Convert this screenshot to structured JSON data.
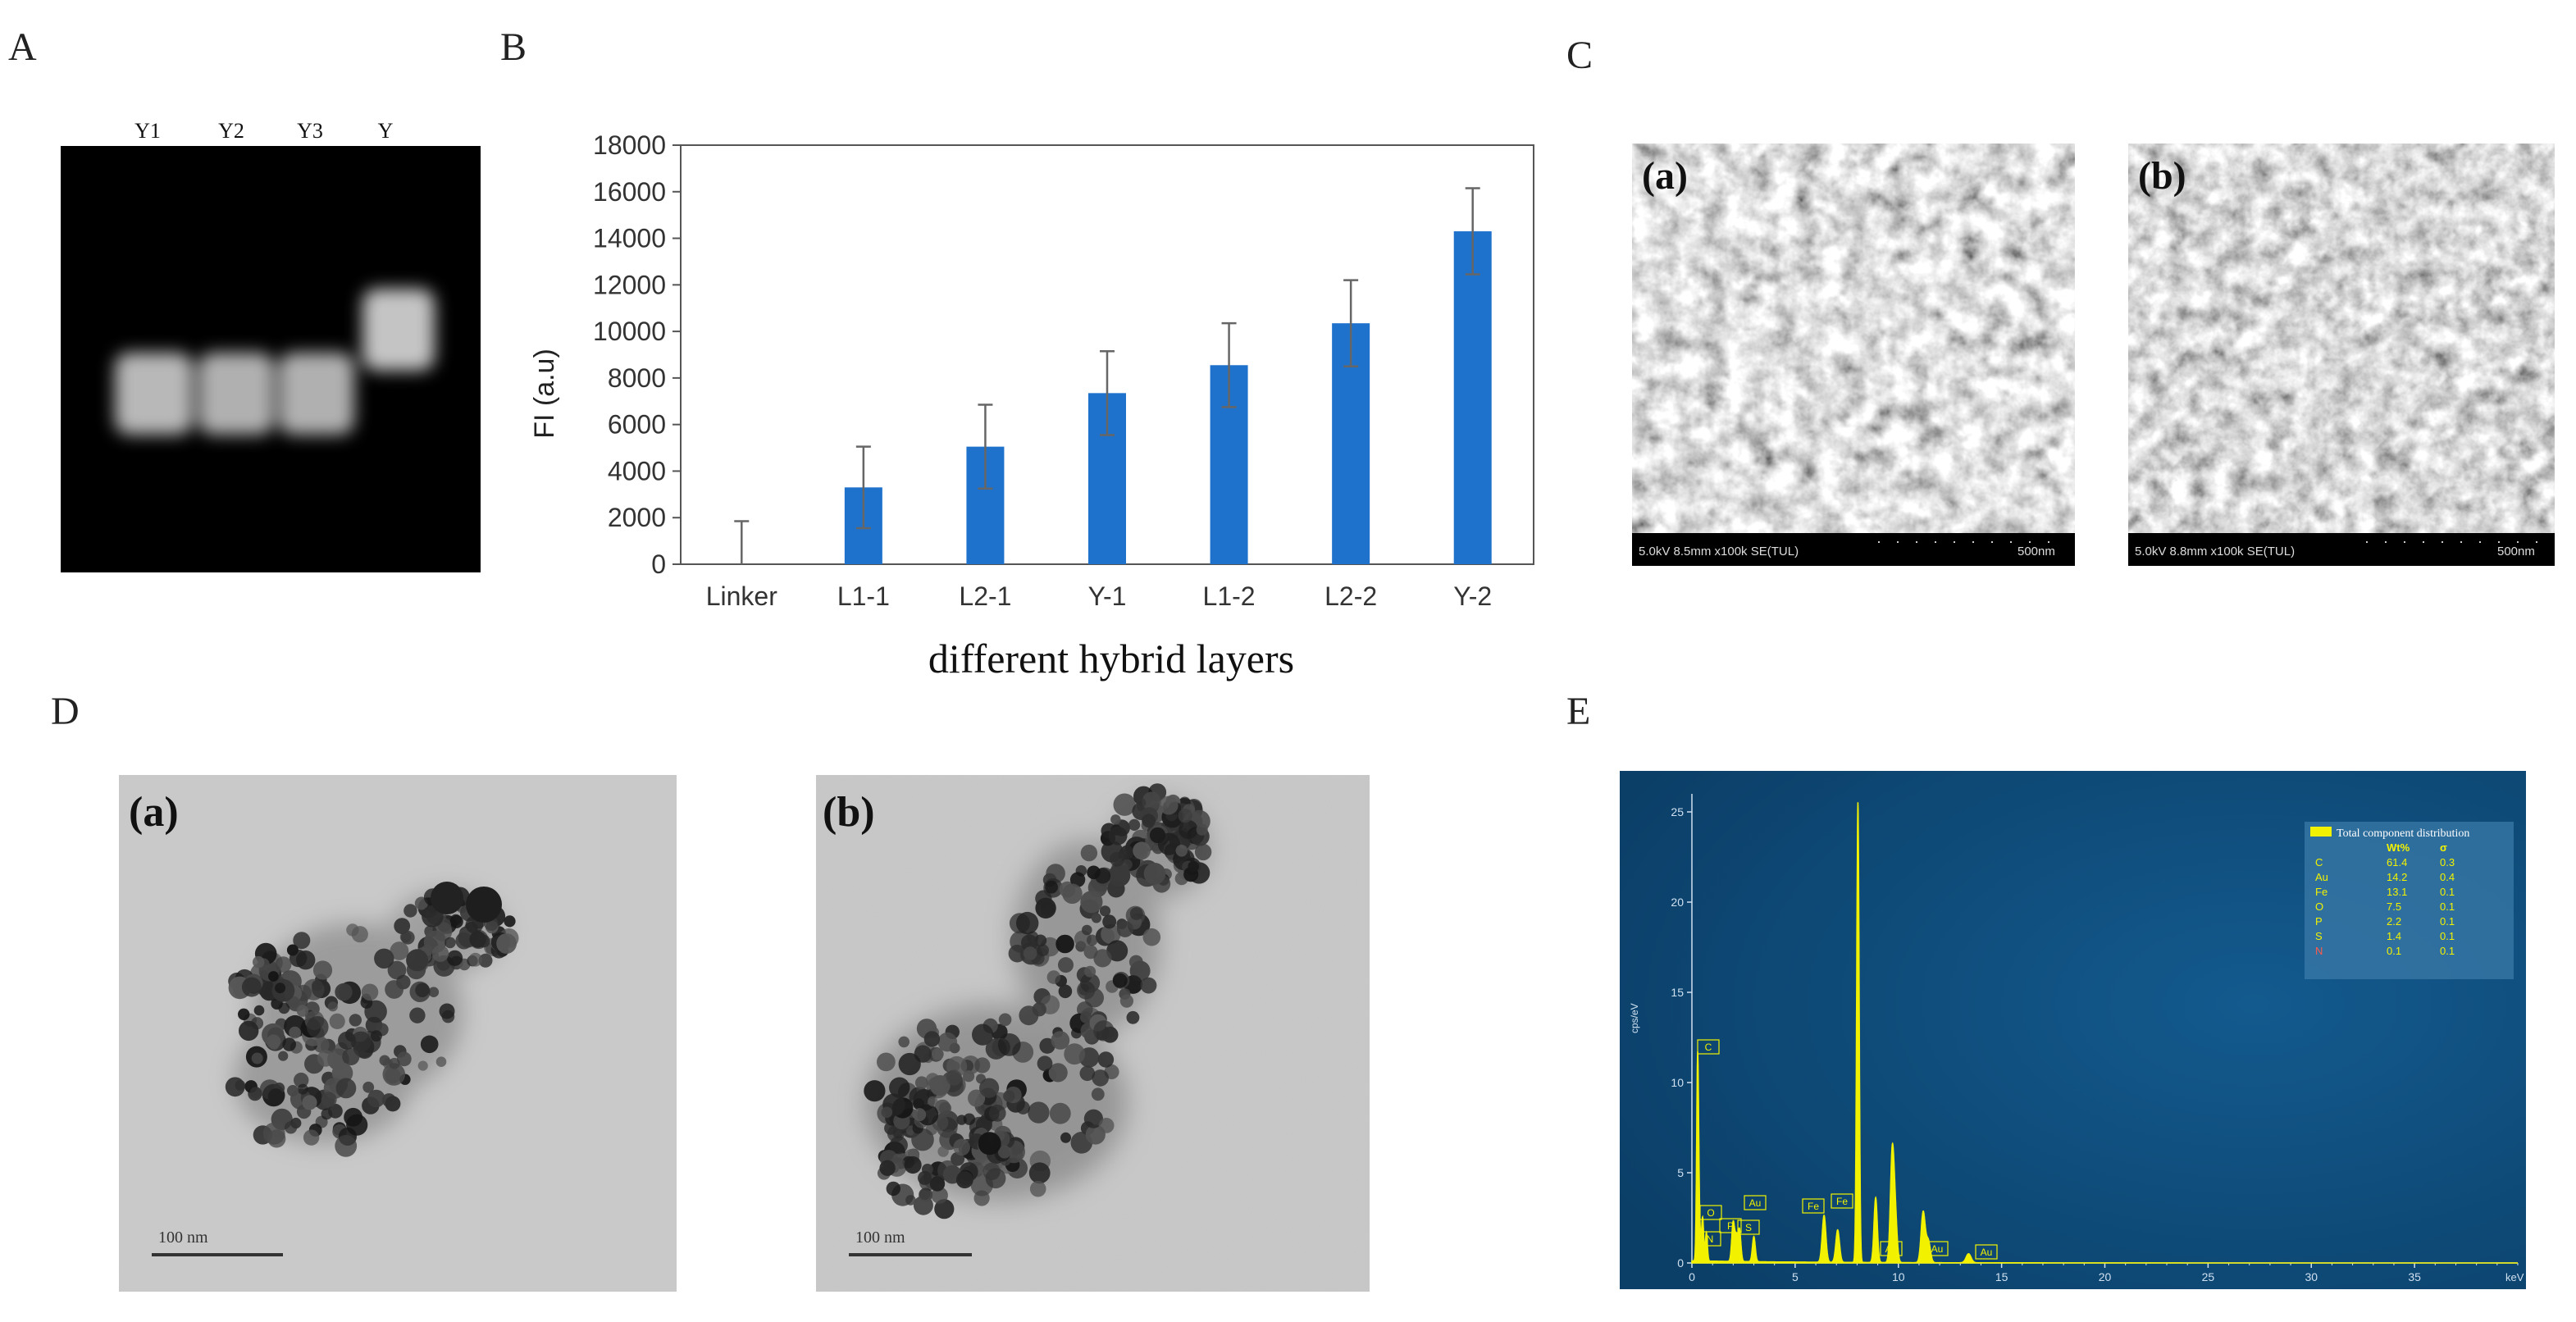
{
  "panels": {
    "a": "A",
    "b": "B",
    "c": "C",
    "d": "D",
    "e": "E"
  },
  "gel": {
    "lanes": [
      "Y1",
      "Y2",
      "Y3",
      "Y"
    ]
  },
  "chart_data": {
    "type": "bar",
    "categories": [
      "Linker",
      "L1-1",
      "L2-1",
      "Y-1",
      "L1-2",
      "L2-2",
      "Y-2"
    ],
    "values": [
      0,
      3300,
      5050,
      7350,
      8550,
      10350,
      14300
    ],
    "errors": [
      1850,
      1750,
      1800,
      1800,
      1800,
      1850,
      1850
    ],
    "ylabel": "FI  (a.u)",
    "xlabel": "different hybrid layers",
    "ylim": [
      0,
      18000
    ],
    "yticks": [
      0,
      2000,
      4000,
      6000,
      8000,
      10000,
      12000,
      14000,
      16000,
      18000
    ],
    "bar_color": "#1f72cc",
    "grid": false
  },
  "sem": {
    "a": {
      "label": "(a)",
      "info": "5.0kV 8.5mm x100k SE(TUL)",
      "scale": "500nm"
    },
    "b": {
      "label": "(b)",
      "info": "5.0kV 8.8mm x100k SE(TUL)",
      "scale": "500nm"
    }
  },
  "tem": {
    "a": {
      "label": "(a)",
      "scale": "100 nm"
    },
    "b": {
      "label": "(b)",
      "scale": "100 nm"
    }
  },
  "eds": {
    "ylabel": "cps/eV",
    "xunit": "keV",
    "yticks": [
      0,
      5,
      10,
      15,
      20,
      25
    ],
    "xticks": [
      0,
      5,
      10,
      15,
      20,
      25,
      30,
      35
    ],
    "legend_title": "Total component distribution",
    "legend_headers": [
      "Wt%",
      "σ"
    ],
    "legend_rows": [
      {
        "el": "C",
        "wt": "61.4",
        "s": "0.3"
      },
      {
        "el": "Au",
        "wt": "14.2",
        "s": "0.4"
      },
      {
        "el": "Fe",
        "wt": "13.1",
        "s": "0.1"
      },
      {
        "el": "O",
        "wt": "7.5",
        "s": "0.1"
      },
      {
        "el": "P",
        "wt": "2.2",
        "s": "0.1"
      },
      {
        "el": "S",
        "wt": "1.4",
        "s": "0.1"
      },
      {
        "el": "N",
        "wt": "0.1",
        "s": "0.1"
      }
    ],
    "peak_labels": [
      "C",
      "Au",
      "O",
      "Fe",
      "P",
      "S",
      "N",
      "Fe",
      "Au",
      "Au",
      "Au"
    ],
    "colors": {
      "bg": "#0e4a78",
      "spectrum": "#f2f200"
    }
  }
}
